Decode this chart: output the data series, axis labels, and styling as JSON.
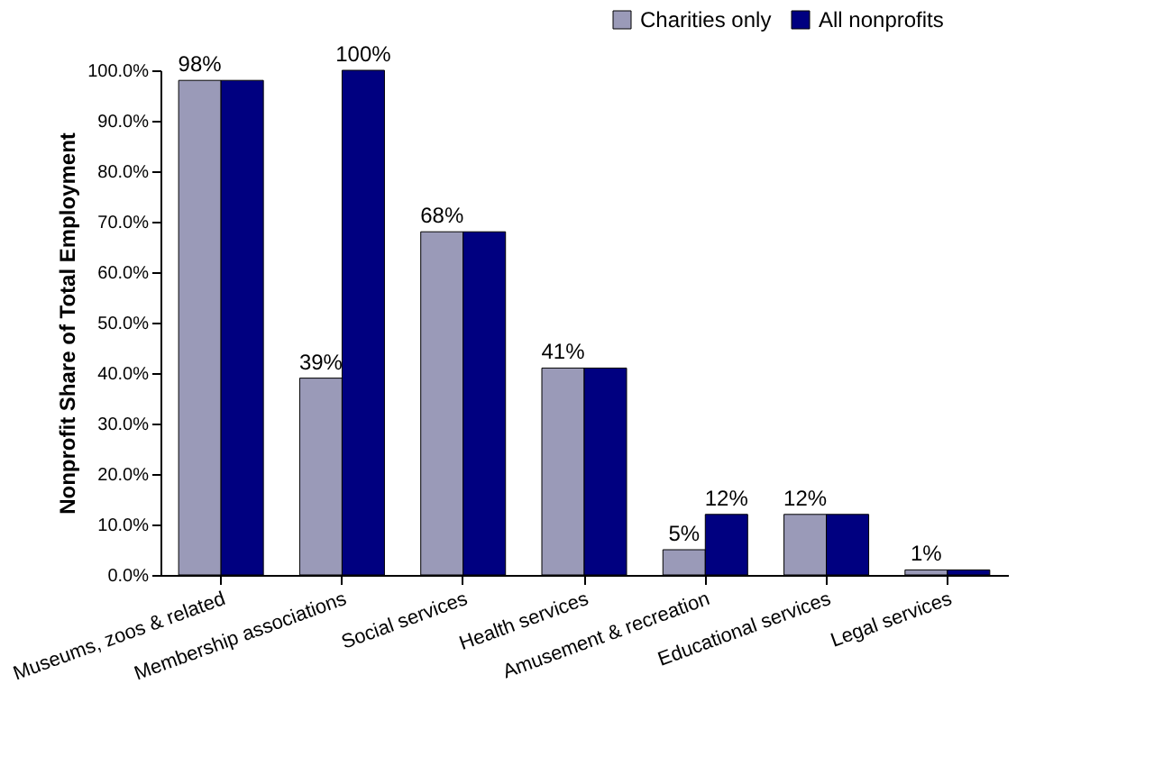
{
  "chart_data": {
    "type": "bar",
    "ylabel": "Nonprofit Share of Total Employment",
    "categories": [
      "Museums, zoos & related",
      "Membership associations",
      "Social services",
      "Health services",
      "Amusement & recreation",
      "Educational services",
      "Legal services"
    ],
    "series": [
      {
        "name": "Charities only",
        "color": "#9a9ab8",
        "values": [
          98,
          39,
          68,
          41,
          5,
          12,
          1
        ],
        "value_labels": [
          "98%",
          "39%",
          "68%",
          "41%",
          "5%",
          "12%",
          "1%"
        ]
      },
      {
        "name": "All nonprofits",
        "color": "#000080",
        "values": [
          98,
          100,
          68,
          41,
          12,
          12,
          1
        ],
        "value_labels": [
          null,
          "100%",
          null,
          null,
          "12%",
          null,
          null
        ]
      }
    ],
    "ylim": [
      0,
      100
    ],
    "yticks": [
      {
        "value": 0,
        "label": "0.0%"
      },
      {
        "value": 10,
        "label": "10.0%"
      },
      {
        "value": 20,
        "label": "20.0%"
      },
      {
        "value": 30,
        "label": "30.0%"
      },
      {
        "value": 40,
        "label": "40.0%"
      },
      {
        "value": 50,
        "label": "50.0%"
      },
      {
        "value": 60,
        "label": "60.0%"
      },
      {
        "value": 70,
        "label": "70.0%"
      },
      {
        "value": 80,
        "label": "80.0%"
      },
      {
        "value": 90,
        "label": "90.0%"
      },
      {
        "value": 100,
        "label": "100.0%"
      }
    ],
    "grid": false,
    "legend": "top right"
  }
}
